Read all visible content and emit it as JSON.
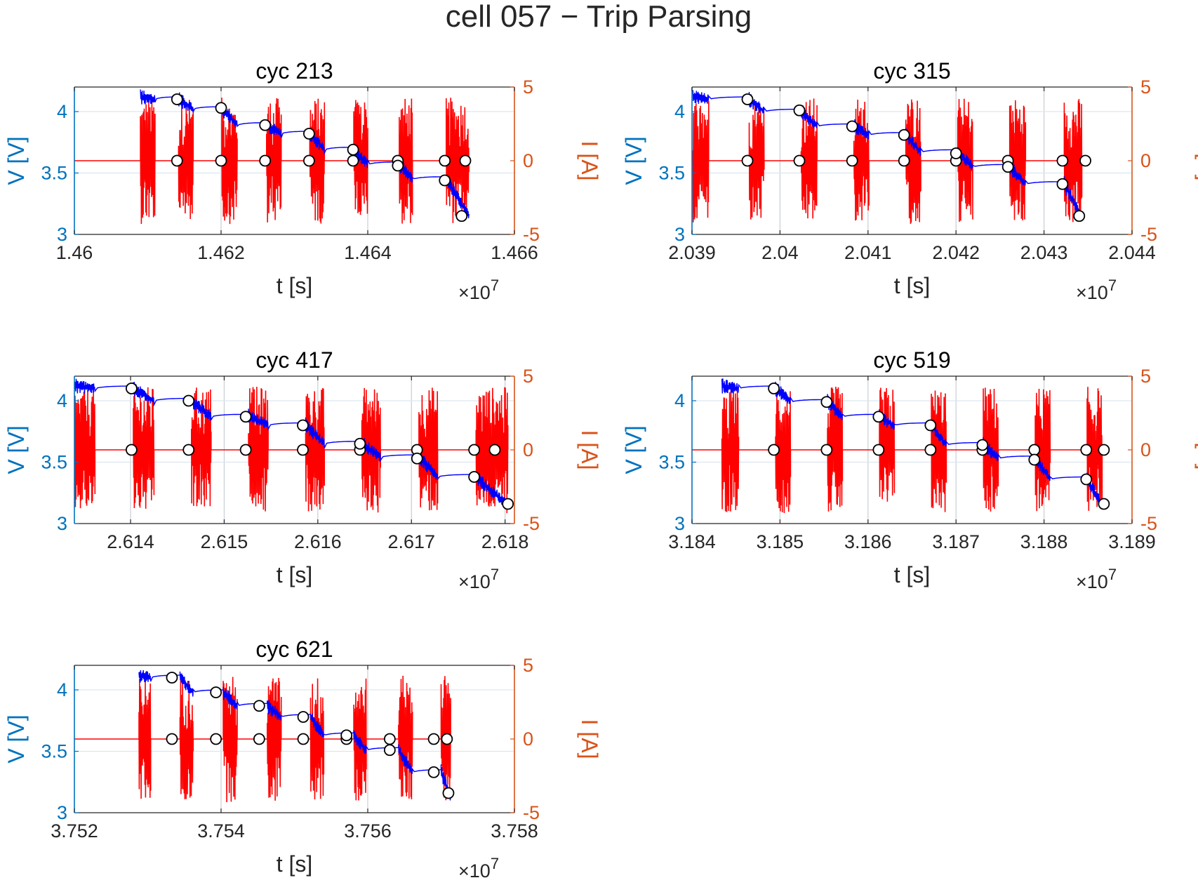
{
  "figure_title": "cell 057 − Trip Parsing",
  "colors": {
    "left_axis": "#0072BD",
    "right_axis": "#D95319",
    "voltage_line": "#0000FF",
    "current_line": "#FF0000",
    "grid": "#DCE6F0",
    "marker_fill": "#FFFFFF",
    "marker_edge": "#000000"
  },
  "chart_data": [
    {
      "type": "line",
      "title": "cyc 213",
      "xlabel": "t [s]",
      "ylabel_left": "V [V]",
      "ylabel_right": "I [A]",
      "exponent_label": "×10",
      "exponent_power": "7",
      "xlim": [
        14600000.0,
        14660000.0
      ],
      "ylim_left": [
        3,
        4.2
      ],
      "ylim_right": [
        -5,
        5
      ],
      "xticks": [
        14600000.0,
        14620000.0,
        14640000.0,
        14660000.0
      ],
      "xtick_labels": [
        "1.46",
        "1.462",
        "1.464",
        "1.466"
      ],
      "yticks_left": [
        3,
        3.5,
        4
      ],
      "ytick_labels_left": [
        "3",
        "3.5",
        "4"
      ],
      "yticks_right": [
        -5,
        0,
        5
      ],
      "ytick_labels_right": [
        "-5",
        "0",
        "5"
      ],
      "grid": true,
      "trip_start": [
        14609000,
        14614200,
        14620100,
        14626200,
        14632100,
        14638100,
        14644300,
        14650700
      ],
      "trip_end": [
        14611000,
        14616200,
        14622200,
        14628200,
        14634100,
        14640000,
        14646100,
        14653800
      ],
      "rest_voltage": [
        4.12,
        4.1,
        4.02,
        3.89,
        3.82,
        3.69,
        3.57,
        3.45
      ],
      "final_voltage": 3.15,
      "rest_markers_v": [
        [
          14614000,
          4.1
        ],
        [
          14620000,
          4.03
        ],
        [
          14626000,
          3.89
        ],
        [
          14632000,
          3.82
        ],
        [
          14638000,
          3.69
        ],
        [
          14644100,
          3.56
        ],
        [
          14650500,
          3.44
        ],
        [
          14652800,
          3.15
        ]
      ],
      "zero_markers_i": [
        14614000,
        14620000,
        14626000,
        14632000,
        14638000,
        14644100,
        14650500,
        14653300
      ]
    },
    {
      "type": "line",
      "title": "cyc 315",
      "xlabel": "t [s]",
      "ylabel_left": "V [V]",
      "ylabel_right": "I [A]",
      "exponent_label": "×10",
      "exponent_power": "7",
      "xlim": [
        20390000.0,
        20440000.0
      ],
      "ylim_left": [
        3,
        4.2
      ],
      "ylim_right": [
        -5,
        5
      ],
      "xticks": [
        20390000.0,
        20400000.0,
        20410000.0,
        20420000.0,
        20430000.0,
        20440000.0
      ],
      "xtick_labels": [
        "2.039",
        "2.04",
        "2.041",
        "2.042",
        "2.043",
        "2.044"
      ],
      "yticks_left": [
        3,
        3.5,
        4
      ],
      "ytick_labels_left": [
        "3",
        "3.5",
        "4"
      ],
      "yticks_right": [
        -5,
        0,
        5
      ],
      "ytick_labels_right": [
        "-5",
        "0",
        "5"
      ],
      "grid": true,
      "trip_start": [
        20390100,
        20396500,
        20402400,
        20408400,
        20414300,
        20420200,
        20426100,
        20432300
      ],
      "trip_end": [
        20391900,
        20398200,
        20404200,
        20410100,
        20416000,
        20421900,
        20427900,
        20434300
      ],
      "rest_voltage": [
        4.12,
        4.1,
        4.0,
        3.88,
        3.81,
        3.67,
        3.55,
        3.41
      ],
      "final_voltage": 3.15,
      "rest_markers_v": [
        [
          20396300,
          4.1
        ],
        [
          20402200,
          4.01
        ],
        [
          20408200,
          3.88
        ],
        [
          20414100,
          3.81
        ],
        [
          20420000,
          3.66
        ],
        [
          20425900,
          3.55
        ],
        [
          20432100,
          3.41
        ],
        [
          20434000,
          3.15
        ]
      ],
      "zero_markers_i": [
        20396300,
        20402200,
        20408200,
        20414100,
        20420000,
        20425900,
        20432100,
        20434700
      ]
    },
    {
      "type": "line",
      "title": "cyc 417",
      "xlabel": "t [s]",
      "ylabel_left": "V [V]",
      "ylabel_right": "I [A]",
      "exponent_label": "×10",
      "exponent_power": "7",
      "xlim": [
        26134000.0,
        26181000.0
      ],
      "ylim_left": [
        3,
        4.2
      ],
      "ylim_right": [
        -5,
        5
      ],
      "xticks": [
        26140000.0,
        26150000.0,
        26160000.0,
        26170000.0,
        26180000.0
      ],
      "xtick_labels": [
        "2.614",
        "2.615",
        "2.616",
        "2.617",
        "2.618"
      ],
      "yticks_left": [
        3,
        3.5,
        4
      ],
      "ytick_labels_left": [
        "3",
        "3.5",
        "4"
      ],
      "yticks_right": [
        -5,
        0,
        5
      ],
      "ytick_labels_right": [
        "-5",
        "0",
        "5"
      ],
      "grid": true,
      "trip_start": [
        26134000,
        26140300,
        26146500,
        26152600,
        26158700,
        26164700,
        26170800,
        26176900
      ],
      "trip_end": [
        26136200,
        26142500,
        26148600,
        26154700,
        26160700,
        26166700,
        26172800,
        26180300
      ],
      "rest_voltage": [
        4.12,
        4.1,
        4.0,
        3.87,
        3.8,
        3.65,
        3.54,
        3.38
      ],
      "final_voltage": 3.15,
      "rest_markers_v": [
        [
          26140100,
          4.1
        ],
        [
          26146200,
          4.0
        ],
        [
          26152300,
          3.87
        ],
        [
          26158400,
          3.8
        ],
        [
          26164500,
          3.65
        ],
        [
          26170600,
          3.53
        ],
        [
          26176700,
          3.38
        ],
        [
          26180300,
          3.16
        ]
      ],
      "zero_markers_i": [
        26140100,
        26146200,
        26152300,
        26158400,
        26164500,
        26170600,
        26176700,
        26178900
      ]
    },
    {
      "type": "line",
      "title": "cyc 519",
      "xlabel": "t [s]",
      "ylabel_left": "V [V]",
      "ylabel_right": "I [A]",
      "exponent_label": "×10",
      "exponent_power": "7",
      "xlim": [
        31840000.0,
        31890000.0
      ],
      "ylim_left": [
        3,
        4.2
      ],
      "ylim_right": [
        -5,
        5
      ],
      "xticks": [
        31840000.0,
        31850000.0,
        31860000.0,
        31870000.0,
        31880000.0,
        31890000.0
      ],
      "xtick_labels": [
        "3.184",
        "3.185",
        "3.186",
        "3.187",
        "3.188",
        "3.189"
      ],
      "yticks_left": [
        3,
        3.5,
        4
      ],
      "ytick_labels_left": [
        "3",
        "3.5",
        "4"
      ],
      "yticks_right": [
        -5,
        0,
        5
      ],
      "ytick_labels_right": [
        "-5",
        "0",
        "5"
      ],
      "grid": true,
      "trip_start": [
        31843400,
        31849500,
        31855400,
        31861300,
        31867200,
        31873100,
        31879000,
        31884900
      ],
      "trip_end": [
        31845300,
        31851200,
        31857100,
        31863000,
        31868900,
        31874800,
        31880700,
        31886600
      ],
      "rest_voltage": [
        4.12,
        4.1,
        3.99,
        3.87,
        3.8,
        3.64,
        3.53,
        3.36
      ],
      "final_voltage": 3.15,
      "rest_markers_v": [
        [
          31849300,
          4.1
        ],
        [
          31855300,
          3.99
        ],
        [
          31861200,
          3.87
        ],
        [
          31867100,
          3.8
        ],
        [
          31873000,
          3.64
        ],
        [
          31878900,
          3.52
        ],
        [
          31884800,
          3.36
        ],
        [
          31886800,
          3.16
        ]
      ],
      "zero_markers_i": [
        31849300,
        31855300,
        31861200,
        31867100,
        31873000,
        31878900,
        31884800,
        31886800
      ]
    },
    {
      "type": "line",
      "title": "cyc 621",
      "xlabel": "t [s]",
      "ylabel_left": "V [V]",
      "ylabel_right": "I [A]",
      "exponent_label": "×10",
      "exponent_power": "7",
      "xlim": [
        37520000.0,
        37580000.0
      ],
      "ylim_left": [
        3,
        4.2
      ],
      "ylim_right": [
        -5,
        5
      ],
      "xticks": [
        37520000.0,
        37540000.0,
        37560000.0,
        37580000.0
      ],
      "xtick_labels": [
        "3.752",
        "3.754",
        "3.756",
        "3.758"
      ],
      "yticks_left": [
        3,
        3.5,
        4
      ],
      "ytick_labels_left": [
        "3",
        "3.5",
        "4"
      ],
      "yticks_right": [
        -5,
        0,
        5
      ],
      "ytick_labels_right": [
        "-5",
        "0",
        "5"
      ],
      "grid": true,
      "trip_start": [
        37528800,
        37534400,
        37540300,
        37546300,
        37552200,
        37558100,
        37564200,
        37570000
      ],
      "trip_end": [
        37530400,
        37536200,
        37542200,
        37548200,
        37554000,
        37559800,
        37566100,
        37571300
      ],
      "rest_voltage": [
        4.12,
        4.1,
        3.98,
        3.87,
        3.78,
        3.63,
        3.51,
        3.33
      ],
      "final_voltage": 3.12,
      "rest_markers_v": [
        [
          37533300,
          4.1
        ],
        [
          37539300,
          3.98
        ],
        [
          37545200,
          3.87
        ],
        [
          37551200,
          3.78
        ],
        [
          37557100,
          3.63
        ],
        [
          37563000,
          3.51
        ],
        [
          37569000,
          3.33
        ],
        [
          37571000,
          3.16
        ]
      ],
      "zero_markers_i": [
        37533300,
        37539300,
        37545200,
        37551200,
        37557100,
        37563000,
        37569000,
        37570800
      ]
    }
  ]
}
